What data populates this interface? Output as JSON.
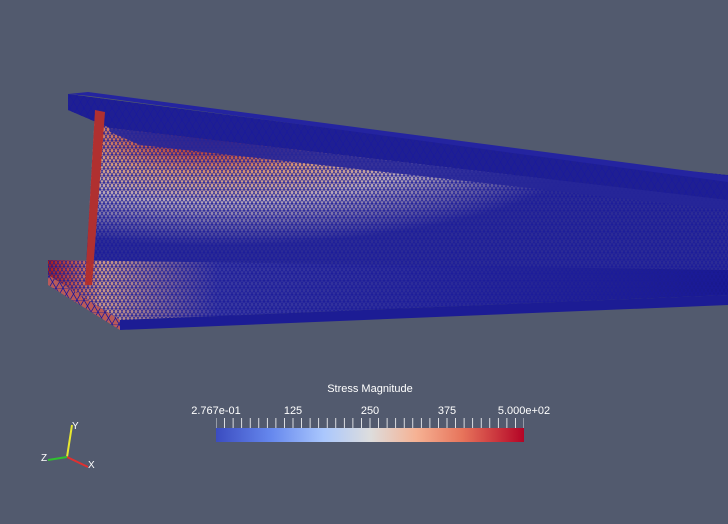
{
  "colorbar": {
    "title": "Stress Magnitude",
    "ticks": [
      {
        "label": "2.767e-01",
        "value": 0.2767
      },
      {
        "label": "125",
        "value": 125
      },
      {
        "label": "250",
        "value": 250
      },
      {
        "label": "375",
        "value": 375
      },
      {
        "label": "5.000e+02",
        "value": 500
      }
    ],
    "range": [
      0.2767,
      500
    ],
    "colormap": [
      "#3b4cc0",
      "#dddddd",
      "#b40426"
    ]
  },
  "axes": {
    "x": {
      "label": "X",
      "color": "#e03030"
    },
    "y": {
      "label": "Y",
      "color": "#e8e830"
    },
    "z": {
      "label": "Z",
      "color": "#30c030"
    }
  },
  "colors": {
    "background": "#525a6e",
    "mesh": "#14148c",
    "high_stress": "#b41414"
  }
}
